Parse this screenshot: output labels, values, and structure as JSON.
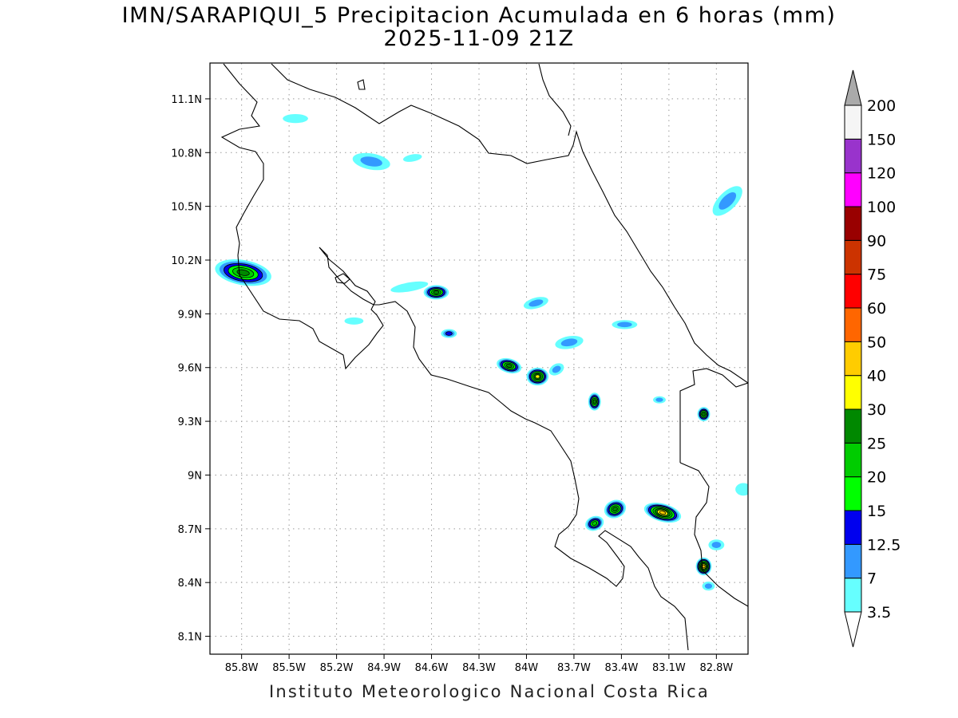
{
  "title": {
    "line1": "IMN/SARAPIQUI_5 Precipitacion Acumulada en 6 horas (mm)",
    "line2": "2025-11-09 21Z"
  },
  "footer": "Instituto Meteorologico Nacional Costa Rica",
  "map": {
    "lon_range": [
      -86.0,
      -82.6
    ],
    "lat_range": [
      8.0,
      11.3
    ],
    "lon_ticks": [
      {
        "value": -85.8,
        "label": "85.8W"
      },
      {
        "value": -85.5,
        "label": "85.5W"
      },
      {
        "value": -85.2,
        "label": "85.2W"
      },
      {
        "value": -84.9,
        "label": "84.9W"
      },
      {
        "value": -84.6,
        "label": "84.6W"
      },
      {
        "value": -84.3,
        "label": "84.3W"
      },
      {
        "value": -84.0,
        "label": "84W"
      },
      {
        "value": -83.7,
        "label": "83.7W"
      },
      {
        "value": -83.4,
        "label": "83.4W"
      },
      {
        "value": -83.1,
        "label": "83.1W"
      },
      {
        "value": -82.8,
        "label": "82.8W"
      }
    ],
    "lat_ticks": [
      {
        "value": 11.1,
        "label": "11.1N"
      },
      {
        "value": 10.8,
        "label": "10.8N"
      },
      {
        "value": 10.5,
        "label": "10.5N"
      },
      {
        "value": 10.2,
        "label": "10.2N"
      },
      {
        "value": 9.9,
        "label": "9.9N"
      },
      {
        "value": 9.6,
        "label": "9.6N"
      },
      {
        "value": 9.3,
        "label": "9.3N"
      },
      {
        "value": 9.0,
        "label": "9N"
      },
      {
        "value": 8.7,
        "label": "8.7N"
      },
      {
        "value": 8.4,
        "label": "8.4N"
      },
      {
        "value": 8.1,
        "label": "8.1N"
      }
    ],
    "grid": true,
    "precip_cells": [
      {
        "lon": -85.79,
        "lat": 10.13,
        "rx": 0.18,
        "ry": 0.07,
        "rot": 10,
        "level": 25
      },
      {
        "lon": -85.46,
        "lat": 10.99,
        "rx": 0.08,
        "ry": 0.025,
        "rot": 0,
        "level": 3.5
      },
      {
        "lon": -84.98,
        "lat": 10.75,
        "rx": 0.12,
        "ry": 0.045,
        "rot": 10,
        "level": 7
      },
      {
        "lon": -84.72,
        "lat": 10.77,
        "rx": 0.06,
        "ry": 0.02,
        "rot": -10,
        "level": 3.5
      },
      {
        "lon": -84.57,
        "lat": 10.02,
        "rx": 0.08,
        "ry": 0.04,
        "rot": 0,
        "level": 25
      },
      {
        "lon": -84.74,
        "lat": 10.05,
        "rx": 0.12,
        "ry": 0.025,
        "rot": -10,
        "level": 3.5
      },
      {
        "lon": -85.09,
        "lat": 9.86,
        "rx": 0.06,
        "ry": 0.02,
        "rot": 0,
        "level": 3.5
      },
      {
        "lon": -84.49,
        "lat": 9.79,
        "rx": 0.05,
        "ry": 0.025,
        "rot": 0,
        "level": 12.5
      },
      {
        "lon": -84.11,
        "lat": 9.61,
        "rx": 0.08,
        "ry": 0.04,
        "rot": 15,
        "level": 25
      },
      {
        "lon": -83.93,
        "lat": 9.55,
        "rx": 0.07,
        "ry": 0.05,
        "rot": 0,
        "level": 30
      },
      {
        "lon": -83.94,
        "lat": 9.96,
        "rx": 0.08,
        "ry": 0.03,
        "rot": -15,
        "level": 7
      },
      {
        "lon": -83.73,
        "lat": 9.74,
        "rx": 0.09,
        "ry": 0.035,
        "rot": -10,
        "level": 7
      },
      {
        "lon": -83.57,
        "lat": 9.41,
        "rx": 0.04,
        "ry": 0.05,
        "rot": 0,
        "level": 25
      },
      {
        "lon": -83.38,
        "lat": 9.84,
        "rx": 0.08,
        "ry": 0.025,
        "rot": 0,
        "level": 7
      },
      {
        "lon": -83.44,
        "lat": 8.81,
        "rx": 0.07,
        "ry": 0.05,
        "rot": -20,
        "level": 25
      },
      {
        "lon": -83.57,
        "lat": 8.73,
        "rx": 0.06,
        "ry": 0.04,
        "rot": -20,
        "level": 20
      },
      {
        "lon": -83.14,
        "lat": 8.79,
        "rx": 0.12,
        "ry": 0.05,
        "rot": 15,
        "level": 40
      },
      {
        "lon": -82.88,
        "lat": 9.34,
        "rx": 0.04,
        "ry": 0.04,
        "rot": 0,
        "level": 25
      },
      {
        "lon": -82.88,
        "lat": 8.49,
        "rx": 0.05,
        "ry": 0.05,
        "rot": 0,
        "level": 40
      },
      {
        "lon": -82.73,
        "lat": 10.53,
        "rx": 0.12,
        "ry": 0.05,
        "rot": -45,
        "level": 7
      },
      {
        "lon": -82.8,
        "lat": 8.61,
        "rx": 0.05,
        "ry": 0.03,
        "rot": 0,
        "level": 7
      },
      {
        "lon": -82.85,
        "lat": 8.38,
        "rx": 0.04,
        "ry": 0.025,
        "rot": 0,
        "level": 7
      },
      {
        "lon": -83.81,
        "lat": 9.59,
        "rx": 0.05,
        "ry": 0.03,
        "rot": -30,
        "level": 7
      },
      {
        "lon": -83.16,
        "lat": 9.42,
        "rx": 0.04,
        "ry": 0.02,
        "rot": 0,
        "level": 7
      },
      {
        "lon": -82.63,
        "lat": 8.92,
        "rx": 0.05,
        "ry": 0.035,
        "rot": 0,
        "level": 3.5
      }
    ]
  },
  "colorbar": {
    "levels": [
      "3.5",
      "7",
      "12.5",
      "15",
      "20",
      "25",
      "30",
      "40",
      "50",
      "60",
      "75",
      "90",
      "100",
      "120",
      "150",
      "200"
    ],
    "colors": [
      "#66ffff",
      "#3399ff",
      "#0000ee",
      "#00ff00",
      "#00cc00",
      "#008800",
      "#ffff00",
      "#ffcc00",
      "#ff6600",
      "#ff0000",
      "#cc3300",
      "#990000",
      "#ff00ff",
      "#9933cc",
      "#f5f5f5"
    ],
    "over_color": "#aaaaaa",
    "under_color": "#ffffff"
  }
}
